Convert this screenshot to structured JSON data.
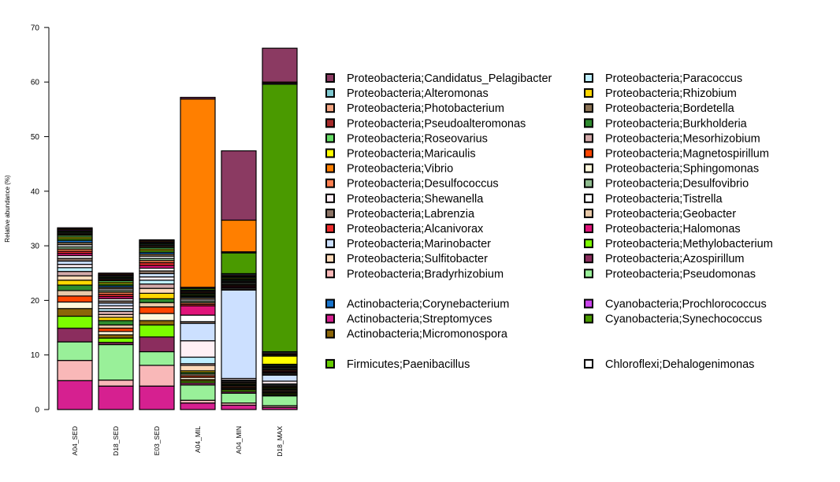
{
  "chart_data": {
    "type": "bar",
    "stacked": true,
    "title": "",
    "xlabel": "",
    "ylabel": "Relative abundance (%)",
    "ylim": [
      0,
      72
    ],
    "yticks": [
      0,
      10,
      20,
      30,
      40,
      50,
      60,
      70
    ],
    "grid": false,
    "legend_position": "right",
    "categories": [
      "A04_SED",
      "D18_SED",
      "E03_SED",
      "A04_MIL",
      "A04_MIN",
      "D18_MAX"
    ],
    "series": [
      {
        "name": "Actinobacteria;Streptomyces",
        "color": "#d62090",
        "values": [
          5.3,
          4.3,
          4.3,
          1.2,
          0.8,
          0.4
        ]
      },
      {
        "name": "Proteobacteria;Bradyrhizobium",
        "color": "#f9b8b8",
        "values": [
          3.7,
          1.1,
          3.8,
          0.5,
          0.4,
          0.3
        ]
      },
      {
        "name": "Proteobacteria;Pseudomonas",
        "color": "#99f099",
        "values": [
          3.4,
          6.5,
          2.5,
          2.8,
          1.8,
          1.8
        ]
      },
      {
        "name": "Proteobacteria;Azospirillum",
        "color": "#8b2d5e",
        "values": [
          2.5,
          0.4,
          2.7,
          0.4,
          0.3,
          0.2
        ]
      },
      {
        "name": "Proteobacteria;Methylobacterium",
        "color": "#7cfc00",
        "values": [
          2.2,
          0.8,
          2.2,
          0.3,
          0.3,
          0.2
        ]
      },
      {
        "name": "Actinobacteria;Micromonospora",
        "color": "#8b6508",
        "values": [
          1.4,
          0.6,
          0.8,
          0.3,
          0.2,
          0.2
        ]
      },
      {
        "name": "Proteobacteria;Sphingomonas",
        "color": "#fff8dc",
        "values": [
          1.2,
          0.6,
          1.3,
          0.4,
          0.2,
          0.2
        ]
      },
      {
        "name": "Proteobacteria;Magnetospirillum",
        "color": "#ff4500",
        "values": [
          1.1,
          0.6,
          1.2,
          0.3,
          0.2,
          0.2
        ]
      },
      {
        "name": "Proteobacteria;Geobacter",
        "color": "#e8c9a8",
        "values": [
          1.0,
          0.6,
          0.8,
          0.3,
          0.2,
          0.2
        ]
      },
      {
        "name": "Proteobacteria;Burkholderia",
        "color": "#2e8b2e",
        "values": [
          1.0,
          0.8,
          0.7,
          0.3,
          0.2,
          0.2
        ]
      },
      {
        "name": "Proteobacteria;Rhizobium",
        "color": "#ffd700",
        "values": [
          0.9,
          0.6,
          1.0,
          0.3,
          0.2,
          0.2
        ]
      },
      {
        "name": "Proteobacteria;Sulfitobacter",
        "color": "#ffdab9",
        "values": [
          0.8,
          0.5,
          0.9,
          1.0,
          0.2,
          0.2
        ]
      },
      {
        "name": "Proteobacteria;Mesorhizobium",
        "color": "#d2a9a9",
        "values": [
          0.8,
          0.6,
          0.8,
          0.3,
          0.2,
          0.2
        ]
      },
      {
        "name": "Proteobacteria;Paracoccus",
        "color": "#bfefff",
        "values": [
          0.7,
          0.5,
          0.7,
          1.2,
          0.2,
          0.2
        ]
      },
      {
        "name": "Proteobacteria;Shewanella",
        "color": "#fff0f5",
        "values": [
          0.6,
          0.5,
          0.6,
          3.0,
          0.3,
          0.5
        ]
      },
      {
        "name": "Proteobacteria;Marinobacter",
        "color": "#cce0ff",
        "values": [
          0.6,
          0.5,
          0.6,
          3.2,
          16.2,
          1.1
        ]
      },
      {
        "name": "Proteobacteria;Labrenzia",
        "color": "#8b7365",
        "values": [
          0.5,
          0.4,
          0.5,
          0.3,
          0.2,
          0.2
        ]
      },
      {
        "name": "Proteobacteria;Tistrella",
        "color": "#ffffff",
        "values": [
          0.5,
          0.4,
          0.5,
          1.2,
          0.2,
          0.2
        ]
      },
      {
        "name": "Proteobacteria;Halomonas",
        "color": "#e0147a",
        "values": [
          0.4,
          0.4,
          0.5,
          1.7,
          0.2,
          0.2
        ]
      },
      {
        "name": "Proteobacteria;Alcanivorax",
        "color": "#ee2c2c",
        "values": [
          0.4,
          0.4,
          0.5,
          0.3,
          0.2,
          0.2
        ]
      },
      {
        "name": "Proteobacteria;Desulfococcus",
        "color": "#ff7f50",
        "values": [
          0.4,
          0.4,
          0.4,
          0.3,
          0.2,
          0.2
        ]
      },
      {
        "name": "Proteobacteria;Desulfovibrio",
        "color": "#8fbc8f",
        "values": [
          0.4,
          0.3,
          0.4,
          0.3,
          0.2,
          0.2
        ]
      },
      {
        "name": "Chloroflexi;Dehalogenimonas",
        "color": "#ffffff",
        "values": [
          0.4,
          0.3,
          0.4,
          0.3,
          0.2,
          0.2
        ]
      },
      {
        "name": "Proteobacteria;Bordetella",
        "color": "#8b7355",
        "values": [
          0.4,
          0.3,
          0.4,
          0.3,
          0.2,
          0.2
        ]
      },
      {
        "name": "Actinobacteria;Corynebacterium",
        "color": "#1874cd",
        "values": [
          0.4,
          0.3,
          0.3,
          0.2,
          0.2,
          0.2
        ]
      },
      {
        "name": "Firmicutes;Paenibacillus",
        "color": "#66cd00",
        "values": [
          0.3,
          0.3,
          0.3,
          0.2,
          0.2,
          0.2
        ]
      },
      {
        "name": "Proteobacteria;Maricaulis",
        "color": "#ffff00",
        "values": [
          0.3,
          0.3,
          0.3,
          0.2,
          0.2,
          1.5
        ]
      },
      {
        "name": "Proteobacteria;Roseovarius",
        "color": "#66dd66",
        "values": [
          0.3,
          0.3,
          0.3,
          0.2,
          0.2,
          0.2
        ]
      },
      {
        "name": "Proteobacteria;Pseudoalteromonas",
        "color": "#a52a2a",
        "values": [
          0.2,
          0.2,
          0.2,
          0.2,
          0.2,
          0.2
        ]
      },
      {
        "name": "Proteobacteria;Photobacterium",
        "color": "#f4a582",
        "values": [
          0.2,
          0.2,
          0.2,
          0.2,
          0.2,
          0.2
        ]
      },
      {
        "name": "Proteobacteria;Alteromonas",
        "color": "#7ec8d0",
        "values": [
          0.2,
          0.2,
          0.2,
          0.2,
          0.2,
          0.2
        ]
      },
      {
        "name": "Cyanobacteria;Synechococcus",
        "color": "#4a9a00",
        "values": [
          0.2,
          0.2,
          0.2,
          0.3,
          3.8,
          49.0
        ]
      },
      {
        "name": "Cyanobacteria;Prochlorococcus",
        "color": "#cc44ee",
        "values": [
          0.2,
          0.2,
          0.2,
          0.2,
          0.2,
          0.2
        ]
      },
      {
        "name": "Proteobacteria;Vibrio",
        "color": "#ff7f00",
        "values": [
          0.2,
          0.2,
          0.2,
          34.5,
          5.8,
          0.2
        ]
      },
      {
        "name": "Proteobacteria;Candidatus_Pelagibacter",
        "color": "#8b3a62",
        "values": [
          0.2,
          0.2,
          0.2,
          0.3,
          12.7,
          6.2
        ]
      }
    ]
  },
  "legend": {
    "col1": [
      {
        "label": "Proteobacteria;Candidatus_Pelagibacter",
        "color": "#8b3a62"
      },
      {
        "label": "Proteobacteria;Alteromonas",
        "color": "#7ec8d0"
      },
      {
        "label": "Proteobacteria;Photobacterium",
        "color": "#f4a582"
      },
      {
        "label": "Proteobacteria;Pseudoalteromonas",
        "color": "#a52a2a"
      },
      {
        "label": "Proteobacteria;Roseovarius",
        "color": "#66dd66"
      },
      {
        "label": "Proteobacteria;Maricaulis",
        "color": "#ffff00"
      },
      {
        "label": "Proteobacteria;Vibrio",
        "color": "#ff7f00"
      },
      {
        "label": "Proteobacteria;Desulfococcus",
        "color": "#ff7f50"
      },
      {
        "label": "Proteobacteria;Shewanella",
        "color": "#fff0f5"
      },
      {
        "label": "Proteobacteria;Labrenzia",
        "color": "#8b7365"
      },
      {
        "label": "Proteobacteria;Alcanivorax",
        "color": "#ee2c2c"
      },
      {
        "label": "Proteobacteria;Marinobacter",
        "color": "#cce0ff"
      },
      {
        "label": "Proteobacteria;Sulfitobacter",
        "color": "#ffdab9"
      },
      {
        "label": "Proteobacteria;Bradyrhizobium",
        "color": "#f9b8b8"
      },
      {
        "label": "",
        "color": ""
      },
      {
        "label": "Actinobacteria;Corynebacterium",
        "color": "#1874cd"
      },
      {
        "label": "Actinobacteria;Streptomyces",
        "color": "#d62090"
      },
      {
        "label": "Actinobacteria;Micromonospora",
        "color": "#8b6508"
      },
      {
        "label": "",
        "color": ""
      },
      {
        "label": "Firmicutes;Paenibacillus",
        "color": "#66cd00"
      }
    ],
    "col2": [
      {
        "label": "Proteobacteria;Paracoccus",
        "color": "#bfefff"
      },
      {
        "label": "Proteobacteria;Rhizobium",
        "color": "#ffd700"
      },
      {
        "label": "Proteobacteria;Bordetella",
        "color": "#8b7355"
      },
      {
        "label": "Proteobacteria;Burkholderia",
        "color": "#2e8b2e"
      },
      {
        "label": "Proteobacteria;Mesorhizobium",
        "color": "#d2a9a9"
      },
      {
        "label": "Proteobacteria;Magnetospirillum",
        "color": "#ff4500"
      },
      {
        "label": "Proteobacteria;Sphingomonas",
        "color": "#fff8dc"
      },
      {
        "label": "Proteobacteria;Desulfovibrio",
        "color": "#8fbc8f"
      },
      {
        "label": "Proteobacteria;Tistrella",
        "color": "#ffffff"
      },
      {
        "label": "Proteobacteria;Geobacter",
        "color": "#e8c9a8"
      },
      {
        "label": "Proteobacteria;Halomonas",
        "color": "#e0147a"
      },
      {
        "label": "Proteobacteria;Methylobacterium",
        "color": "#7cfc00"
      },
      {
        "label": "Proteobacteria;Azospirillum",
        "color": "#8b2d5e"
      },
      {
        "label": "Proteobacteria;Pseudomonas",
        "color": "#99f099"
      },
      {
        "label": "",
        "color": ""
      },
      {
        "label": "Cyanobacteria;Prochlorococcus",
        "color": "#cc44ee"
      },
      {
        "label": "Cyanobacteria;Synechococcus",
        "color": "#4a9a00"
      },
      {
        "label": "",
        "color": ""
      },
      {
        "label": "",
        "color": ""
      },
      {
        "label": "Chloroflexi;Dehalogenimonas",
        "color": "#ffffff"
      }
    ]
  }
}
